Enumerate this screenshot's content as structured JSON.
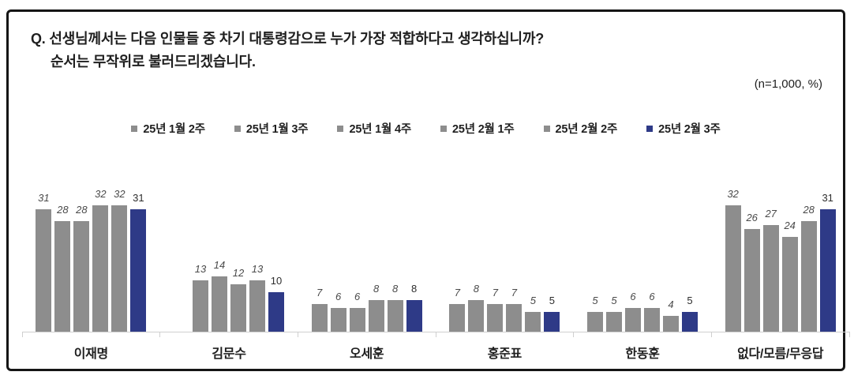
{
  "header": {
    "question_line1": "Q. 선생님께서는 다음 인물들 중 차기 대통령감으로 누가 가장 적합하다고 생각하십니까?",
    "question_line2": "순서는 무작위로 불러드리겠습니다.",
    "sample_note": "(n=1,000,  %)"
  },
  "colors": {
    "bar_gray": "#8d8d8d",
    "bar_blue": "#2e3a87",
    "axis": "#cfcfcf",
    "text": "#1f1f1f",
    "value_label": "#4a4a4a",
    "border": "#151515"
  },
  "chart_data": {
    "type": "bar",
    "title": "Q. 선생님께서는 다음 인물들 중 차기 대통령감으로 누가 가장 적합하다고 생각하십니까? 순서는 무작위로 불러드리겠습니다.",
    "note": "(n=1,000, %)",
    "unit": "%",
    "grid": false,
    "legend_position": "top",
    "value_labels": true,
    "ylim": [
      0,
      38
    ],
    "categories": [
      "이재명",
      "김문수",
      "오세훈",
      "홍준표",
      "한동훈",
      "없다/모름/무응답"
    ],
    "series": [
      {
        "name": "25년 1월 2주",
        "color": "#8d8d8d",
        "current": false,
        "values": [
          31,
          null,
          7,
          7,
          5,
          32
        ]
      },
      {
        "name": "25년 1월 3주",
        "color": "#8d8d8d",
        "current": false,
        "values": [
          28,
          13,
          6,
          8,
          5,
          26
        ]
      },
      {
        "name": "25년 1월 4주",
        "color": "#8d8d8d",
        "current": false,
        "values": [
          28,
          14,
          6,
          7,
          6,
          27
        ]
      },
      {
        "name": "25년 2월 1주",
        "color": "#8d8d8d",
        "current": false,
        "values": [
          32,
          12,
          8,
          7,
          6,
          24
        ]
      },
      {
        "name": "25년 2월 2주",
        "color": "#8d8d8d",
        "current": false,
        "values": [
          32,
          13,
          8,
          5,
          4,
          28
        ]
      },
      {
        "name": "25년 2월 3주",
        "color": "#2e3a87",
        "current": true,
        "values": [
          31,
          10,
          8,
          5,
          5,
          31
        ]
      }
    ]
  }
}
